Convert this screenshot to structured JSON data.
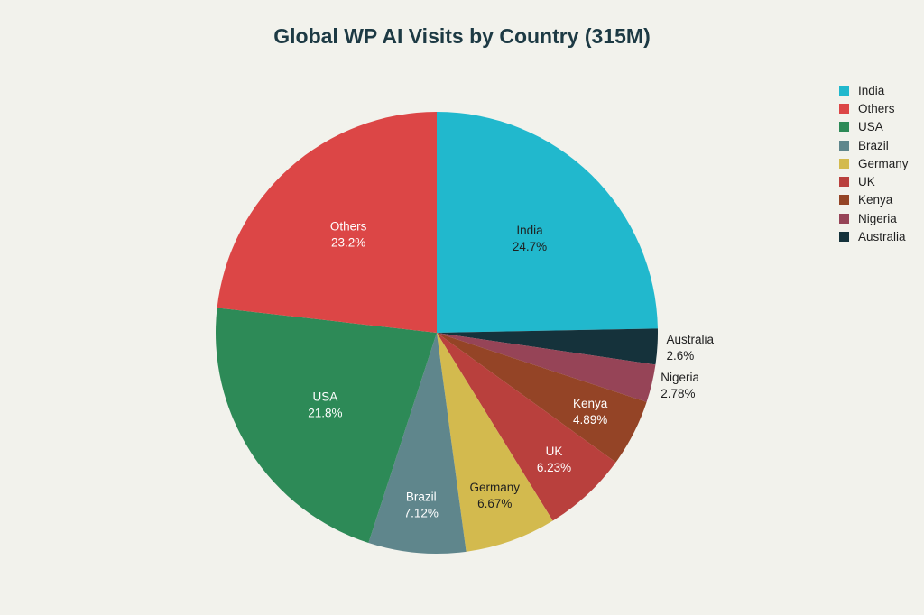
{
  "chart_data": {
    "type": "pie",
    "title": "Global WP AI Visits by Country (315M)",
    "direction": "clockwise",
    "start_angle": "top",
    "legend_placement": "top-right",
    "slices": [
      {
        "label": "India",
        "value": 24.7,
        "display": "24.7%",
        "color": "#21b8cd",
        "label_color": "#1f1f1f",
        "label_position": "inside"
      },
      {
        "label": "Australia",
        "value": 2.6,
        "display": "2.6%",
        "color": "#15323b",
        "label_color": "#1f1f1f",
        "label_position": "outside"
      },
      {
        "label": "Nigeria",
        "value": 2.78,
        "display": "2.78%",
        "color": "#964457",
        "label_color": "#1f1f1f",
        "label_position": "outside"
      },
      {
        "label": "Kenya",
        "value": 4.89,
        "display": "4.89%",
        "color": "#944426",
        "label_color": "#ffffff",
        "label_position": "inside"
      },
      {
        "label": "UK",
        "value": 6.23,
        "display": "6.23%",
        "color": "#b9403d",
        "label_color": "#ffffff",
        "label_position": "inside"
      },
      {
        "label": "Germany",
        "value": 6.67,
        "display": "6.67%",
        "color": "#d3ba4e",
        "label_color": "#1f1f1f",
        "label_position": "inside"
      },
      {
        "label": "Brazil",
        "value": 7.12,
        "display": "7.12%",
        "color": "#5f868c",
        "label_color": "#ffffff",
        "label_position": "inside"
      },
      {
        "label": "USA",
        "value": 21.8,
        "display": "21.8%",
        "color": "#2d8a57",
        "label_color": "#ffffff",
        "label_position": "inside"
      },
      {
        "label": "Others",
        "value": 23.2,
        "display": "23.2%",
        "color": "#dc4646",
        "label_color": "#ffffff",
        "label_position": "inside"
      }
    ],
    "legend": [
      {
        "label": "India",
        "color": "#21b8cd"
      },
      {
        "label": "Others",
        "color": "#dc4646"
      },
      {
        "label": "USA",
        "color": "#2d8a57"
      },
      {
        "label": "Brazil",
        "color": "#5f868c"
      },
      {
        "label": "Germany",
        "color": "#d3ba4e"
      },
      {
        "label": "UK",
        "color": "#b9403d"
      },
      {
        "label": "Kenya",
        "color": "#944426"
      },
      {
        "label": "Nigeria",
        "color": "#964457"
      },
      {
        "label": "Australia",
        "color": "#15323b"
      }
    ]
  }
}
